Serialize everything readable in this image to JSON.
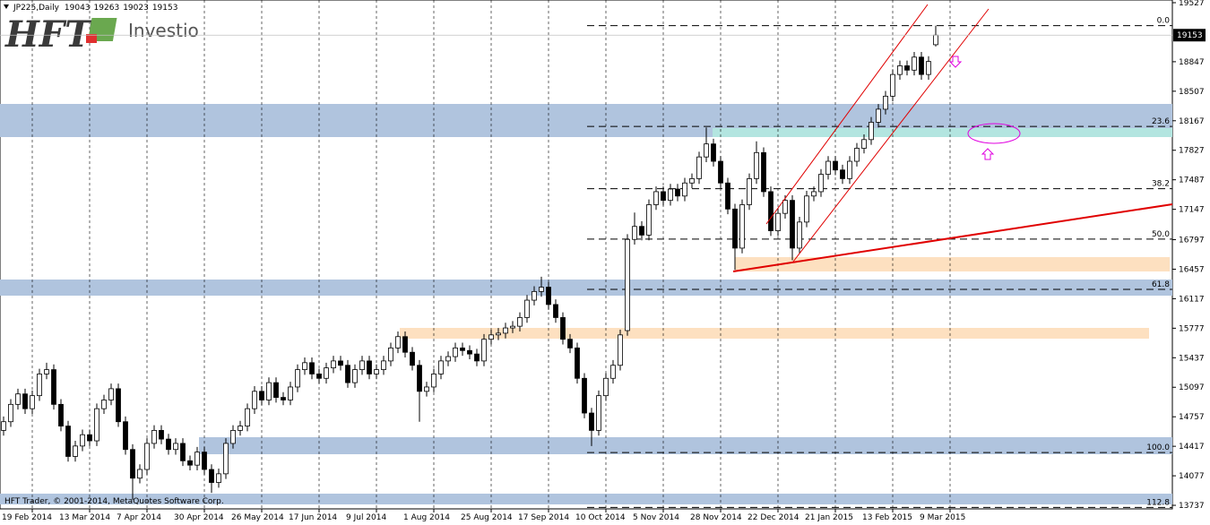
{
  "logo": {
    "mark": "HFT",
    "brand": "Investio"
  },
  "copyright": "HFT Trader, © 2001-2014, MetaQuotes Software Corp.",
  "chart_data": {
    "type": "candlestick",
    "title": "JP225,Daily",
    "open": [
      14600,
      14700,
      14900,
      15020,
      14850,
      15000,
      15250,
      15300,
      14900,
      14650,
      14300,
      14420,
      14550,
      14480,
      14850,
      14950,
      15080,
      14700,
      14380,
      14050,
      14150,
      14450,
      14600,
      14500,
      14380,
      14450,
      14250,
      14200,
      14350,
      14150,
      14000,
      14100,
      14450,
      14600,
      14650,
      14850,
      15050,
      14950,
      15150,
      14980,
      14950,
      15100,
      15300,
      15380,
      15250,
      15200,
      15320,
      15400,
      15350,
      15150,
      15300,
      15400,
      15250,
      15300,
      15400,
      15550,
      15680,
      15500,
      15350,
      15050,
      15100,
      15250,
      15400,
      15450,
      15550,
      15520,
      15480,
      15400,
      15650,
      15700,
      15720,
      15780,
      15800,
      15900,
      16100,
      16200,
      16250,
      16050,
      15900,
      15650,
      15550,
      15200,
      14800,
      14600,
      15000,
      15200,
      15350,
      15750,
      16800,
      16950,
      16850,
      17200,
      17350,
      17250,
      17380,
      17300,
      17450,
      17500,
      17750,
      17900,
      17700,
      17450,
      17150,
      16700,
      17200,
      17500,
      17800,
      17350,
      16900,
      17100,
      17250,
      16700,
      17000,
      17300,
      17350,
      17550,
      17700,
      17600,
      17500,
      17700,
      17850,
      17950,
      18150,
      18300,
      18450,
      18700,
      18800,
      18750,
      18900,
      18700,
      19043
    ],
    "high": [
      14760,
      14960,
      15080,
      15080,
      15060,
      15310,
      15380,
      15360,
      14960,
      14710,
      14480,
      14610,
      14610,
      14910,
      15010,
      15140,
      15140,
      14760,
      14440,
      14210,
      14510,
      14660,
      14660,
      14560,
      14510,
      14510,
      14310,
      14410,
      14410,
      14210,
      14160,
      14510,
      14660,
      14710,
      14910,
      15110,
      15110,
      15210,
      15210,
      15040,
      15160,
      15360,
      15440,
      15440,
      15310,
      15380,
      15460,
      15460,
      15410,
      15360,
      15460,
      15460,
      15360,
      15460,
      15610,
      15740,
      15740,
      15560,
      15410,
      15160,
      15310,
      15460,
      15510,
      15610,
      15610,
      15580,
      15540,
      15710,
      15760,
      15780,
      15840,
      15860,
      15960,
      16160,
      16260,
      16370,
      16310,
      16110,
      15960,
      15710,
      15610,
      15260,
      14860,
      15060,
      15260,
      15410,
      15760,
      16860,
      17110,
      17010,
      17260,
      17410,
      17410,
      17440,
      17440,
      17510,
      17560,
      17810,
      18090,
      17960,
      17760,
      17510,
      17210,
      17260,
      17560,
      17930,
      17860,
      17410,
      17160,
      17310,
      17310,
      17060,
      17360,
      17410,
      17610,
      17760,
      17760,
      17660,
      17760,
      17910,
      18010,
      18210,
      18360,
      18510,
      18760,
      18860,
      18860,
      18960,
      18960,
      18910,
      19263
    ],
    "low": [
      14540,
      14640,
      14840,
      14790,
      14790,
      14940,
      15190,
      14840,
      14590,
      14240,
      14240,
      14360,
      14420,
      14420,
      14790,
      14890,
      14640,
      14320,
      13800,
      13990,
      14090,
      14390,
      14440,
      14320,
      14320,
      14190,
      14140,
      14140,
      14090,
      13880,
      13940,
      14040,
      14390,
      14540,
      14590,
      14790,
      14890,
      14890,
      14920,
      14890,
      14890,
      15040,
      15240,
      15190,
      15140,
      15140,
      15260,
      15290,
      15090,
      15090,
      15240,
      15190,
      15190,
      15240,
      15340,
      15490,
      15440,
      15290,
      14700,
      14990,
      15040,
      15190,
      15340,
      15390,
      15460,
      15420,
      15340,
      15340,
      15590,
      15640,
      15660,
      15720,
      15740,
      15840,
      16040,
      16140,
      15990,
      15840,
      15590,
      15490,
      15140,
      14740,
      14420,
      14540,
      14940,
      15140,
      15290,
      15690,
      16740,
      16790,
      16790,
      17140,
      17190,
      17190,
      17240,
      17240,
      17390,
      17440,
      17690,
      17640,
      17390,
      17090,
      16450,
      16640,
      17140,
      17440,
      17290,
      16840,
      16840,
      17040,
      16560,
      16640,
      16940,
      17240,
      17290,
      17490,
      17540,
      17440,
      17440,
      17640,
      17790,
      17890,
      18090,
      18240,
      18390,
      18640,
      18690,
      18690,
      18640,
      18640,
      19023
    ],
    "close": [
      14700,
      14900,
      15020,
      14850,
      15000,
      15250,
      15300,
      14900,
      14650,
      14300,
      14420,
      14550,
      14480,
      14850,
      14950,
      15080,
      14700,
      14380,
      14050,
      14150,
      14450,
      14600,
      14500,
      14380,
      14450,
      14250,
      14200,
      14350,
      14150,
      14000,
      14100,
      14450,
      14600,
      14650,
      14850,
      15050,
      14950,
      15150,
      14980,
      14950,
      15100,
      15300,
      15380,
      15250,
      15200,
      15320,
      15400,
      15350,
      15150,
      15300,
      15400,
      15250,
      15300,
      15400,
      15550,
      15680,
      15500,
      15350,
      15050,
      15100,
      15250,
      15400,
      15450,
      15550,
      15520,
      15480,
      15400,
      15650,
      15700,
      15720,
      15780,
      15800,
      15900,
      16100,
      16200,
      16250,
      16050,
      15900,
      15650,
      15550,
      15200,
      14800,
      14600,
      15000,
      15200,
      15350,
      15700,
      16800,
      16950,
      16850,
      17200,
      17350,
      17250,
      17380,
      17300,
      17450,
      17500,
      17750,
      17900,
      17700,
      17450,
      17150,
      16700,
      17200,
      17500,
      17800,
      17350,
      16900,
      17100,
      17250,
      16700,
      17000,
      17300,
      17350,
      17550,
      17700,
      17600,
      17500,
      17700,
      17850,
      17950,
      18150,
      18300,
      18450,
      18700,
      18800,
      18750,
      18900,
      18700,
      18850,
      19153
    ],
    "up_color": "#ffffff",
    "down_color": "#000000",
    "ylim": [
      13696,
      19558
    ],
    "yticks": [
      19527,
      18847,
      18507,
      18167,
      17827,
      17487,
      17147,
      16797,
      16457,
      16117,
      15777,
      15437,
      15097,
      14757,
      14417,
      14077,
      13737
    ],
    "xlim": [
      -0.5,
      163
    ],
    "xticks": [
      {
        "value": 4,
        "label": "19 Feb 2014"
      },
      {
        "value": 12,
        "label": "13 Mar 2014"
      },
      {
        "value": 20,
        "label": "7 Apr 2014"
      },
      {
        "value": 28,
        "label": "30 Apr 2014"
      },
      {
        "value": 36,
        "label": "26 May 2014"
      },
      {
        "value": 44,
        "label": "17 Jun 2014"
      },
      {
        "value": 52,
        "label": "9 Jul 2014"
      },
      {
        "value": 60,
        "label": "1 Aug 2014"
      },
      {
        "value": 68,
        "label": "25 Aug 2014"
      },
      {
        "value": 76,
        "label": "17 Sep 2014"
      },
      {
        "value": 84,
        "label": "10 Oct 2014"
      },
      {
        "value": 92,
        "label": "5 Nov 2014"
      },
      {
        "value": 100,
        "label": "28 Nov 2014"
      },
      {
        "value": 108,
        "label": "22 Dec 2014"
      },
      {
        "value": 116,
        "label": "21 Jan 2015"
      },
      {
        "value": 124,
        "label": "13 Feb 2015"
      },
      {
        "value": 132,
        "label": "9 Mar 2015"
      }
    ],
    "fibonacci": [
      {
        "label": "0.0",
        "value": 19263
      },
      {
        "label": "23.6",
        "value": 18102
      },
      {
        "label": "38.2",
        "value": 17384
      },
      {
        "label": "50.0",
        "value": 16804
      },
      {
        "label": "61.8",
        "value": 16224
      },
      {
        "label": "100.0",
        "value": 14345
      },
      {
        "label": "112.8",
        "value": 13713
      }
    ]
  }
}
